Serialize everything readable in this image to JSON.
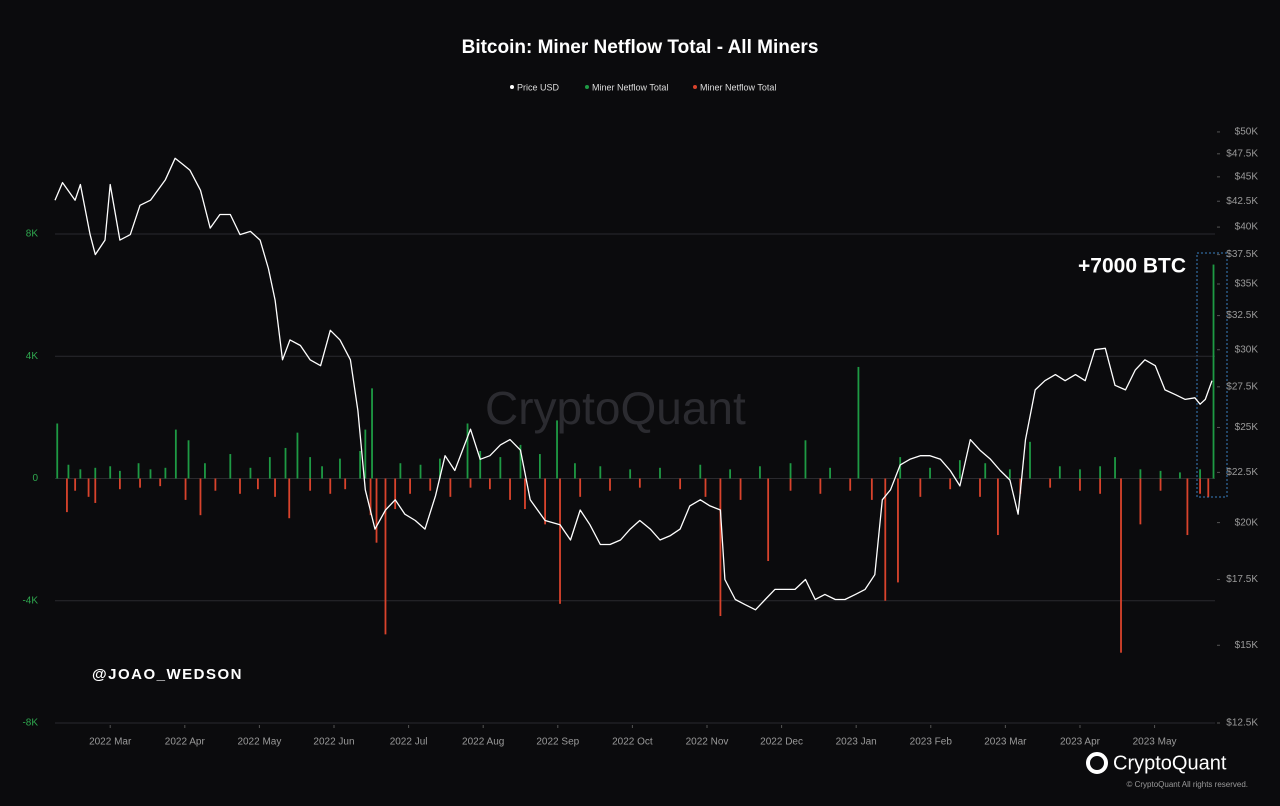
{
  "chart_data": {
    "type": "bar-line",
    "title": "Bitcoin: Miner Netflow Total - All Miners",
    "annotation": "+7000 BTC",
    "watermark": "CryptoQuant",
    "credit": "@JOAO_WEDSON",
    "brand": "CryptoQuant",
    "copyright": "© CryptoQuant All rights reserved.",
    "grid": true,
    "y2scale": "log",
    "xlim": [
      -0.74,
      14.81
    ],
    "xticks": [
      {
        "value": 0,
        "label": "2022 Mar"
      },
      {
        "value": 1,
        "label": "2022 Apr"
      },
      {
        "value": 2,
        "label": "2022 May"
      },
      {
        "value": 3,
        "label": "2022 Jun"
      },
      {
        "value": 4,
        "label": "2022 Jul"
      },
      {
        "value": 5,
        "label": "2022 Aug"
      },
      {
        "value": 6,
        "label": "2022 Sep"
      },
      {
        "value": 7,
        "label": "2022 Oct"
      },
      {
        "value": 8,
        "label": "2022 Nov"
      },
      {
        "value": 9,
        "label": "2022 Dec"
      },
      {
        "value": 10,
        "label": "2023 Jan"
      },
      {
        "value": 11,
        "label": "2023 Feb"
      },
      {
        "value": 12,
        "label": "2023 Mar"
      },
      {
        "value": 13,
        "label": "2023 Apr"
      },
      {
        "value": 14,
        "label": "2023 May"
      }
    ],
    "ylim": [
      -8000,
      11730
    ],
    "yticks": [
      {
        "value": -8000,
        "label": "-8K"
      },
      {
        "value": -4000,
        "label": "-4K"
      },
      0,
      {
        "value": 4000,
        "label": "4K"
      },
      {
        "value": 8000,
        "label": "8K"
      }
    ],
    "y2lim": [
      12500,
      51420
    ],
    "y2ticks": [
      {
        "value": 12500,
        "label": "$12.5K"
      },
      {
        "value": 15000,
        "label": "$15K"
      },
      {
        "value": 17500,
        "label": "$17.5K"
      },
      {
        "value": 20000,
        "label": "$20K"
      },
      {
        "value": 22500,
        "label": "$22.5K"
      },
      {
        "value": 25000,
        "label": "$25K"
      },
      {
        "value": 27500,
        "label": "$27.5K"
      },
      {
        "value": 30000,
        "label": "$30K"
      },
      {
        "value": 32500,
        "label": "$32.5K"
      },
      {
        "value": 35000,
        "label": "$35K"
      },
      {
        "value": 37500,
        "label": "$37.5K"
      },
      {
        "value": 40000,
        "label": "$40K"
      },
      {
        "value": 42500,
        "label": "$42.5K"
      },
      {
        "value": 45000,
        "label": "$45K"
      },
      {
        "value": 47500,
        "label": "$47.5K"
      },
      {
        "value": 50000,
        "label": "$50K"
      }
    ],
    "series": [
      {
        "name": "Price USD",
        "color": "#ffffff",
        "axis": "y2",
        "kind": "line",
        "x": [
          -0.74,
          -0.64,
          -0.47,
          -0.4,
          -0.27,
          -0.2,
          -0.07,
          0,
          0.13,
          0.27,
          0.4,
          0.54,
          0.74,
          0.87,
          0.98,
          1.07,
          1.21,
          1.34,
          1.47,
          1.61,
          1.74,
          1.88,
          2.01,
          2.12,
          2.21,
          2.31,
          2.41,
          2.55,
          2.68,
          2.82,
          2.95,
          3.08,
          3.22,
          3.32,
          3.42,
          3.55,
          3.69,
          3.82,
          3.95,
          4.09,
          4.22,
          4.36,
          4.49,
          4.62,
          4.83,
          4.96,
          5.09,
          5.23,
          5.36,
          5.5,
          5.63,
          5.83,
          6.03,
          6.17,
          6.3,
          6.43,
          6.57,
          6.7,
          6.84,
          6.97,
          7.1,
          7.24,
          7.37,
          7.51,
          7.64,
          7.77,
          7.91,
          8.04,
          8.18,
          8.24,
          8.38,
          8.51,
          8.65,
          8.78,
          8.91,
          9.05,
          9.18,
          9.32,
          9.45,
          9.58,
          9.72,
          9.85,
          9.99,
          10.12,
          10.25,
          10.35,
          10.46,
          10.59,
          10.72,
          10.86,
          10.99,
          11.13,
          11.26,
          11.39,
          11.53,
          11.66,
          11.8,
          11.93,
          12.06,
          12.17,
          12.27,
          12.4,
          12.53,
          12.67,
          12.8,
          12.94,
          13.07,
          13.2,
          13.34,
          13.47,
          13.61,
          13.74,
          13.87,
          14.01,
          14.14,
          14.28,
          14.41,
          14.54,
          14.61,
          14.68,
          14.77
        ],
        "values": [
          42600,
          44400,
          42600,
          44200,
          39300,
          37500,
          38800,
          44200,
          38800,
          39300,
          42100,
          42600,
          44700,
          47000,
          46300,
          45700,
          43600,
          39900,
          41200,
          41200,
          39300,
          39600,
          38800,
          36300,
          33700,
          29300,
          30700,
          30300,
          29300,
          28900,
          31400,
          30700,
          29300,
          26000,
          21600,
          19700,
          20600,
          21100,
          20400,
          20100,
          19700,
          21300,
          23400,
          22600,
          24900,
          23200,
          23400,
          24000,
          24300,
          23700,
          21100,
          20100,
          19900,
          19200,
          20600,
          19900,
          19000,
          19000,
          19200,
          19700,
          20100,
          19700,
          19200,
          19400,
          19700,
          20800,
          21100,
          20800,
          20600,
          17500,
          16700,
          16500,
          16300,
          16700,
          17100,
          17100,
          17100,
          17500,
          16700,
          16900,
          16700,
          16700,
          16900,
          17100,
          17700,
          21100,
          21600,
          22900,
          23200,
          23400,
          23400,
          23200,
          22600,
          21800,
          24300,
          23700,
          23200,
          22600,
          22100,
          20400,
          24300,
          27300,
          27900,
          28300,
          27900,
          28300,
          27900,
          30000,
          30100,
          27600,
          27300,
          28600,
          29300,
          28900,
          27300,
          27000,
          26700,
          26800,
          26400,
          26700,
          27900
        ]
      },
      {
        "name": "Miner Netflow Total",
        "color": "#1e9a44",
        "kind": "bar",
        "x": [
          -0.71,
          -0.56,
          -0.4,
          -0.2,
          0,
          0.13,
          0.38,
          0.54,
          0.74,
          0.88,
          1.05,
          1.27,
          1.61,
          1.88,
          2.14,
          2.35,
          2.51,
          2.68,
          2.84,
          3.08,
          3.35,
          3.42,
          3.51,
          3.89,
          4.16,
          4.42,
          4.79,
          4.96,
          5.23,
          5.5,
          5.76,
          5.99,
          6.23,
          6.57,
          6.97,
          7.37,
          7.91,
          8.31,
          8.71,
          9.12,
          9.32,
          9.65,
          10.03,
          10.59,
          10.99,
          11.39,
          11.73,
          12.06,
          12.33,
          12.73,
          13.0,
          13.27,
          13.47,
          13.81,
          14.08,
          14.34,
          14.61,
          14.79
        ],
        "values": [
          1800,
          450,
          300,
          350,
          400,
          250,
          500,
          300,
          350,
          1600,
          1250,
          500,
          800,
          350,
          700,
          1000,
          1500,
          700,
          400,
          650,
          900,
          1600,
          2950,
          500,
          450,
          650,
          1800,
          900,
          700,
          1100,
          800,
          1900,
          500,
          400,
          300,
          350,
          450,
          300,
          400,
          500,
          1250,
          350,
          3650,
          700,
          350,
          600,
          500,
          300,
          1200,
          400,
          300,
          400,
          700,
          300,
          250,
          200,
          300,
          7000
        ]
      },
      {
        "name": "Miner Netflow Total",
        "color": "#d9432c",
        "kind": "bar",
        "x": [
          -0.58,
          -0.47,
          -0.29,
          -0.2,
          0.13,
          0.4,
          0.67,
          1.01,
          1.21,
          1.41,
          1.74,
          1.98,
          2.21,
          2.4,
          2.68,
          2.95,
          3.15,
          3.49,
          3.57,
          3.69,
          3.82,
          4.02,
          4.29,
          4.56,
          4.83,
          5.09,
          5.36,
          5.56,
          5.83,
          6.03,
          6.3,
          6.7,
          7.1,
          7.64,
          7.98,
          8.18,
          8.45,
          8.82,
          9.12,
          9.52,
          9.92,
          10.21,
          10.39,
          10.56,
          10.86,
          11.26,
          11.66,
          11.9,
          12.2,
          12.6,
          13.0,
          13.27,
          13.55,
          13.81,
          14.08,
          14.44,
          14.61,
          14.72
        ],
        "values": [
          -1100,
          -400,
          -600,
          -800,
          -350,
          -300,
          -250,
          -700,
          -1200,
          -400,
          -500,
          -350,
          -600,
          -1300,
          -400,
          -500,
          -350,
          -1200,
          -2100,
          -5100,
          -1000,
          -500,
          -400,
          -600,
          -300,
          -350,
          -700,
          -1000,
          -1500,
          -4100,
          -600,
          -400,
          -300,
          -350,
          -600,
          -4500,
          -700,
          -2700,
          -400,
          -500,
          -400,
          -700,
          -4000,
          -3400,
          -600,
          -350,
          -600,
          -1850,
          -500,
          -300,
          -400,
          -500,
          -5700,
          -1500,
          -400,
          -1850,
          -500,
          -600
        ]
      }
    ]
  }
}
